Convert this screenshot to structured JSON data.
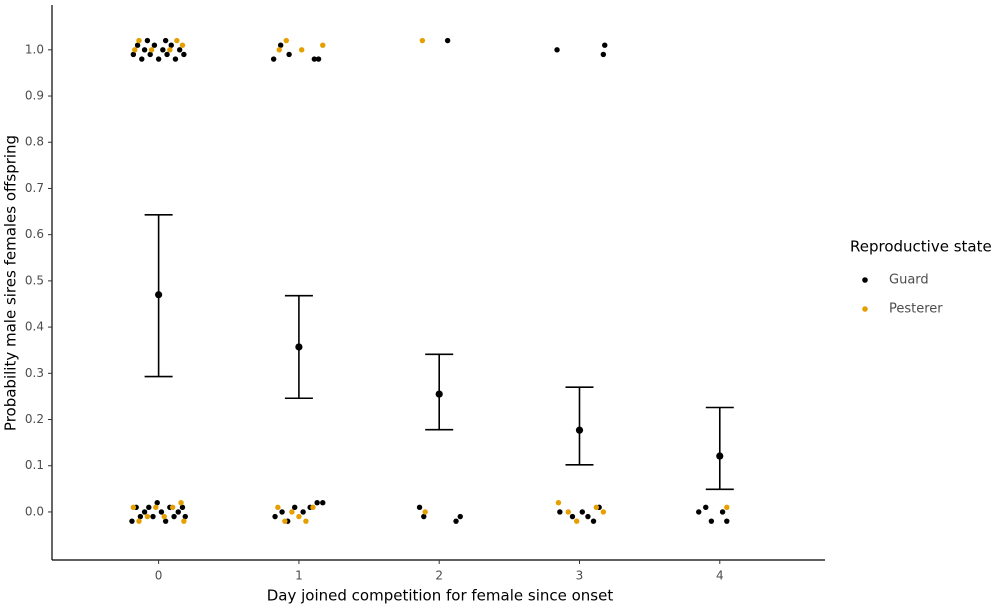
{
  "chart_data": {
    "type": "scatter",
    "xlabel": "Day joined competition for female since onset",
    "ylabel": "Probability male sires females offspring",
    "legend_title": "Reproductive state",
    "legend": "right",
    "xlim": [
      -0.76,
      4.75
    ],
    "ylim": [
      -0.104,
      1.097
    ],
    "xticks": [
      0,
      1,
      2,
      3,
      4
    ],
    "yticks": [
      {
        "value": 0,
        "label": "0.0"
      },
      0.1,
      0.2,
      0.3,
      0.4,
      0.5,
      0.6,
      0.7,
      0.8,
      0.9,
      {
        "value": 1,
        "label": "1.0"
      }
    ],
    "series": [
      {
        "name": "Guard",
        "color": "#000000",
        "x": [
          -0.18,
          -0.15,
          -0.12,
          -0.1,
          -0.06,
          -0.03,
          0.0,
          0.03,
          0.06,
          0.09,
          0.12,
          0.15,
          0.18,
          -0.08,
          0.05,
          -0.19,
          -0.16,
          -0.13,
          -0.1,
          -0.07,
          -0.04,
          -0.01,
          0.02,
          0.05,
          0.08,
          0.11,
          0.14,
          0.17,
          0.19,
          0.82,
          0.87,
          0.93,
          1.11,
          1.14,
          0.83,
          0.88,
          0.92,
          0.97,
          1.03,
          1.08,
          1.13,
          1.17,
          2.06,
          1.86,
          1.89,
          2.12,
          2.15,
          2.84,
          3.17,
          3.18,
          2.86,
          2.95,
          3.02,
          3.1,
          3.14,
          3.06,
          3.85,
          3.9,
          3.94,
          4.02,
          4.05
        ],
        "y": [
          0.99,
          1.01,
          0.98,
          1.0,
          0.99,
          1.01,
          0.98,
          1.0,
          0.99,
          1.01,
          0.98,
          1.0,
          0.99,
          1.02,
          1.02,
          -0.02,
          0.01,
          -0.01,
          0.0,
          0.01,
          -0.01,
          0.02,
          0.0,
          -0.02,
          0.01,
          -0.01,
          0.0,
          0.01,
          -0.01,
          0.98,
          1.01,
          0.99,
          0.98,
          0.98,
          -0.01,
          0.0,
          -0.02,
          0.01,
          0.0,
          0.01,
          0.02,
          0.02,
          1.02,
          0.01,
          -0.01,
          -0.02,
          -0.01,
          1.0,
          0.99,
          1.01,
          0.0,
          -0.01,
          0.0,
          -0.02,
          0.01,
          -0.01,
          0.0,
          0.01,
          -0.02,
          0.0,
          -0.02
        ]
      },
      {
        "name": "Pesterer",
        "color": "#e69f00",
        "x": [
          -0.17,
          -0.14,
          -0.05,
          0.08,
          0.13,
          0.17,
          -0.18,
          -0.14,
          -0.08,
          -0.02,
          0.04,
          0.1,
          0.18,
          0.16,
          0.86,
          0.91,
          1.02,
          1.17,
          0.85,
          0.9,
          0.95,
          1.0,
          1.05,
          1.1,
          1.88,
          1.9,
          2.85,
          2.92,
          2.98,
          3.12,
          3.17,
          4.05
        ],
        "y": [
          1.0,
          1.02,
          1.0,
          1.0,
          1.02,
          1.01,
          0.01,
          -0.02,
          -0.01,
          0.01,
          -0.01,
          0.01,
          -0.02,
          0.02,
          1.0,
          1.02,
          1.0,
          1.01,
          0.01,
          -0.02,
          0.0,
          -0.01,
          -0.02,
          0.01,
          1.02,
          0.0,
          0.02,
          0.0,
          -0.02,
          0.01,
          0.0,
          0.01
        ]
      }
    ],
    "summary": {
      "color": "#000000",
      "x": [
        0,
        1,
        2,
        3,
        4
      ],
      "values": [
        0.47,
        0.357,
        0.255,
        0.177,
        0.121
      ],
      "lower": [
        0.293,
        0.246,
        0.178,
        0.102,
        0.049
      ],
      "upper": [
        0.643,
        0.468,
        0.341,
        0.27,
        0.226
      ]
    }
  }
}
